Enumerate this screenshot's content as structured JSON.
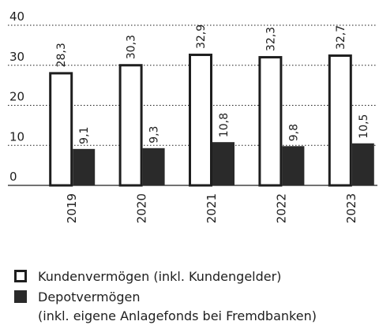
{
  "chart_data": {
    "type": "bar",
    "categories": [
      "2019",
      "2020",
      "2021",
      "2022",
      "2023"
    ],
    "series": [
      {
        "name": "Kundenvermögen (inkl. Kundengelder)",
        "color": "#ffffff",
        "stroke": "#1e1e1e",
        "values": [
          28.3,
          30.3,
          32.9,
          32.3,
          32.7
        ],
        "value_labels": [
          "28,3",
          "30,3",
          "32,9",
          "32,3",
          "32,7"
        ]
      },
      {
        "name": "Depotvermögen\n(inkl. eigene Anlagefonds bei Fremdbanken)",
        "color": "#2a2a2a",
        "values": [
          9.1,
          9.3,
          10.8,
          9.8,
          10.5
        ],
        "value_labels": [
          "9,1",
          "9,3",
          "10,8",
          "9,8",
          "10,5"
        ]
      }
    ],
    "ylim": [
      0,
      40
    ],
    "yticks": [
      0,
      10,
      20,
      30,
      40
    ],
    "grid": true
  }
}
